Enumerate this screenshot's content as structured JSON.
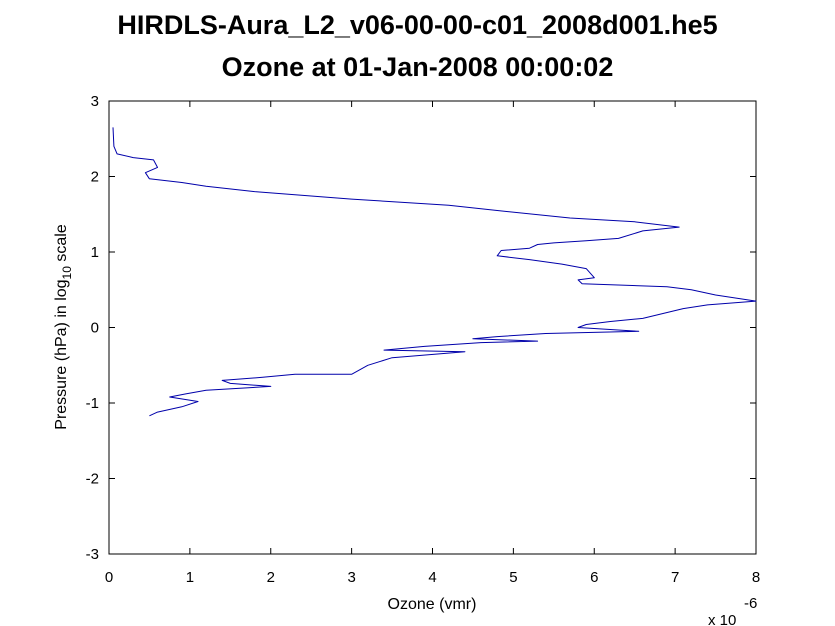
{
  "chart_data": {
    "type": "line",
    "title": "HIRDLS-Aura_L2_v06-00-00-c01_2008d001.he5",
    "subtitle": "Ozone at 01-Jan-2008 00:00:02",
    "xlabel": "Ozone (vmr)",
    "ylabel_main": "Pressure (hPa) in log",
    "ylabel_sub": "10",
    "ylabel_end": " scale",
    "x_exponent_base": "x 10",
    "x_exponent_power": "-6",
    "xlim": [
      0,
      8
    ],
    "ylim": [
      -3,
      3
    ],
    "xticks": [
      0,
      1,
      2,
      3,
      4,
      5,
      6,
      7,
      8
    ],
    "yticks": [
      -3,
      -2,
      -1,
      0,
      1,
      2,
      3
    ],
    "grid": false,
    "line_color": "#0000aa",
    "series": [
      {
        "x": [
          0.05,
          0.06,
          0.1,
          0.3,
          0.55,
          0.6,
          0.45,
          0.5,
          0.9,
          1.2,
          1.8,
          3.0,
          4.2,
          4.8,
          5.7,
          6.5,
          7.05,
          6.6,
          6.3,
          5.9,
          5.5,
          5.3,
          5.2,
          4.85,
          4.8,
          5.2,
          5.6,
          5.9,
          6.0,
          5.8,
          5.85,
          6.9,
          7.2,
          7.5,
          8.0,
          7.4,
          7.1,
          6.6,
          6.2,
          5.9,
          5.8,
          6.55,
          5.4,
          4.8,
          4.5,
          5.3,
          4.6,
          3.9,
          3.4,
          4.4,
          3.5,
          3.2,
          3.0,
          2.3,
          1.9,
          1.4,
          1.5,
          2.0,
          1.2,
          0.95,
          0.75,
          1.1,
          0.9,
          0.6,
          0.5
        ],
        "y": [
          2.65,
          2.4,
          2.3,
          2.25,
          2.22,
          2.12,
          2.05,
          1.97,
          1.92,
          1.87,
          1.8,
          1.7,
          1.62,
          1.55,
          1.45,
          1.4,
          1.33,
          1.28,
          1.18,
          1.15,
          1.12,
          1.1,
          1.05,
          1.02,
          0.95,
          0.9,
          0.84,
          0.78,
          0.66,
          0.63,
          0.58,
          0.54,
          0.5,
          0.43,
          0.35,
          0.3,
          0.25,
          0.12,
          0.08,
          0.04,
          0.0,
          -0.05,
          -0.08,
          -0.12,
          -0.15,
          -0.18,
          -0.2,
          -0.25,
          -0.3,
          -0.32,
          -0.4,
          -0.5,
          -0.62,
          -0.62,
          -0.66,
          -0.7,
          -0.74,
          -0.78,
          -0.83,
          -0.88,
          -0.92,
          -0.98,
          -1.05,
          -1.12,
          -1.17
        ]
      }
    ]
  }
}
